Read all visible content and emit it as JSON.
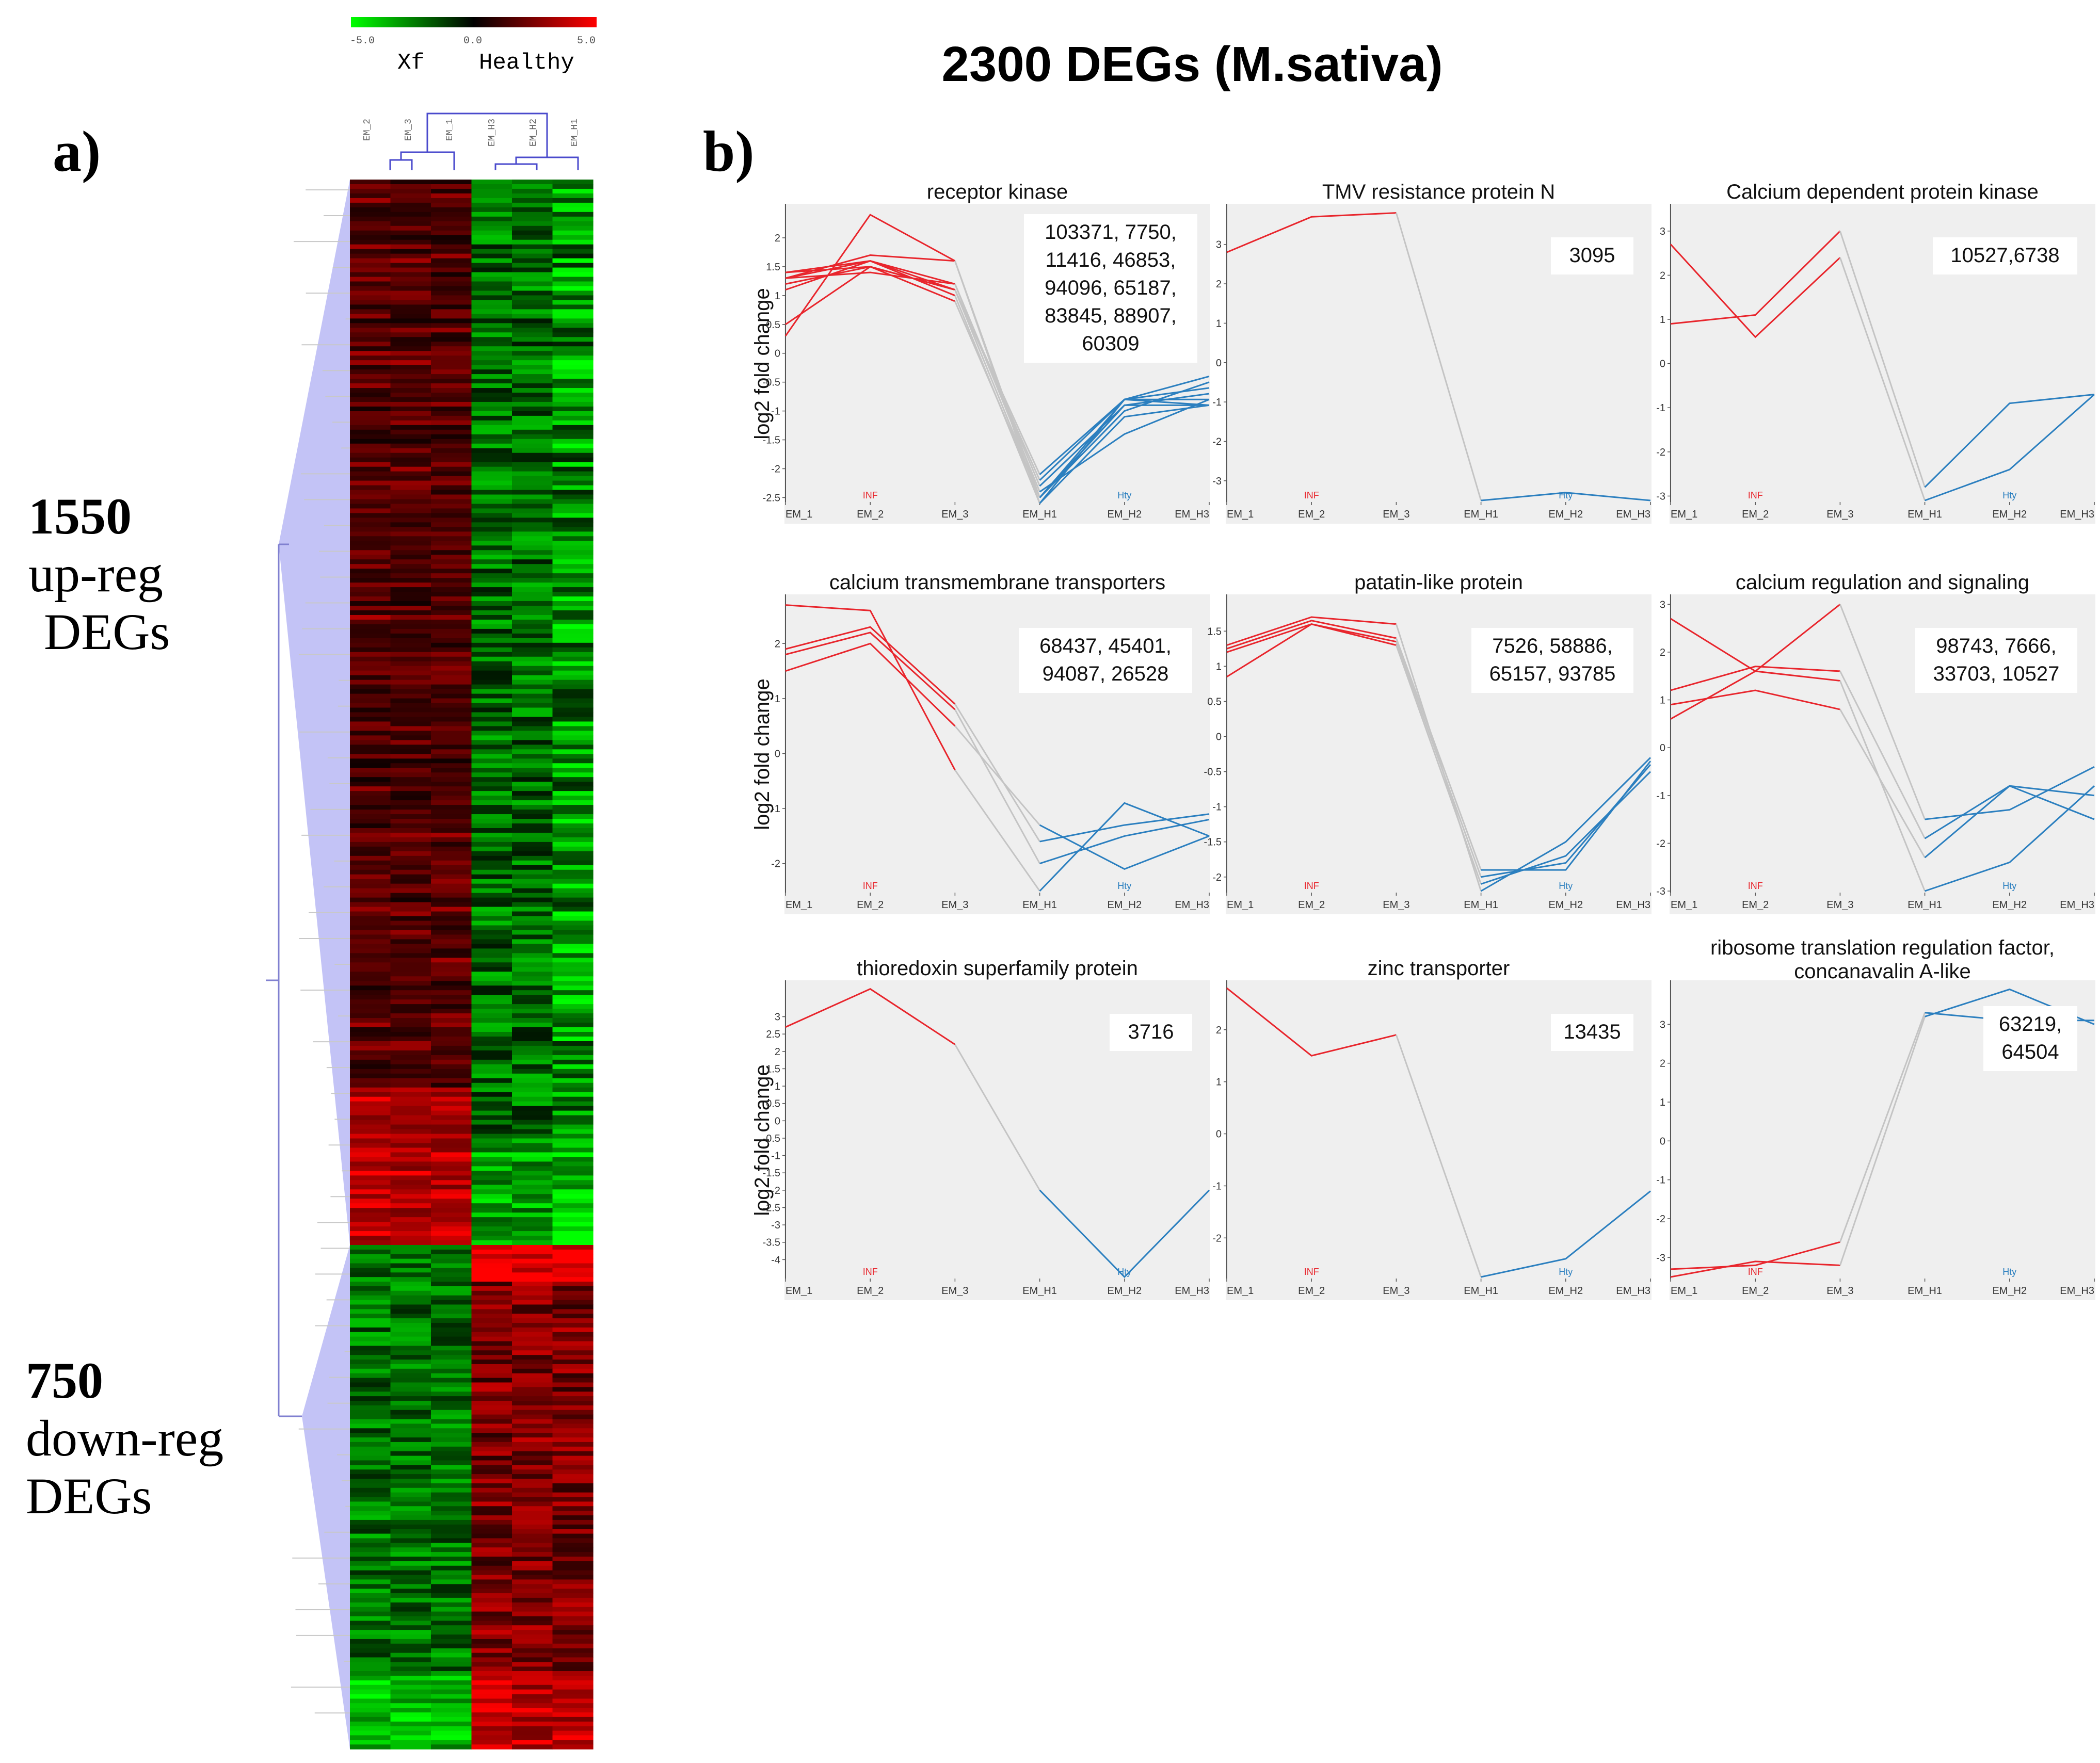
{
  "figure": {
    "title": "2300 DEGs (M.sativa)",
    "panel_a_label": "a)",
    "panel_b_label": "b)",
    "up_count": "1550",
    "up_label_1": "up-reg",
    "up_label_2": "DEGs",
    "down_count": "750",
    "down_label_1": "down-reg",
    "down_label_2": "DEGs",
    "colors": {
      "infected": "#e8252c",
      "healthy": "#2b7fbf",
      "transition": "#c4c4c4",
      "panel_bg": "#efefef",
      "dendro_fill": "#b8b8f5"
    }
  },
  "heatmap": {
    "scale_min": "-5.0",
    "scale_mid": "0.0",
    "scale_max": "5.0",
    "group_left": "Xf",
    "group_right": "Healthy",
    "columns": [
      "EM_2",
      "EM_3",
      "EM_1",
      "EM_H3",
      "EM_H2",
      "EM_H1"
    ],
    "up_rows": 1550,
    "down_rows": 750
  },
  "chart_data": [
    {
      "type": "line",
      "title": "receptor kinase",
      "ylabel": "log2 fold change",
      "x": [
        "EM_1",
        "EM_2",
        "EM_3",
        "EM_H1",
        "EM_H2",
        "EM_H3"
      ],
      "group_labels": [
        "INF",
        "Hty"
      ],
      "yticks": [
        "2",
        "1.5",
        "1",
        "0.5",
        "0",
        "-0.5",
        "-1",
        "-1.5",
        "-2",
        "-2.5"
      ],
      "ylim": [
        -2.55,
        2.5
      ],
      "ids": [
        "103371, 7750,",
        "11416, 46853,",
        "94096, 65187,",
        "83845, 88907,",
        "60309"
      ],
      "series": [
        {
          "values": [
            0.3,
            2.4,
            1.6,
            -2.6,
            -0.8,
            -0.4
          ]
        },
        {
          "values": [
            1.3,
            1.7,
            1.6,
            -2.5,
            -0.8,
            -0.8
          ]
        },
        {
          "values": [
            1.4,
            1.6,
            1.2,
            -2.3,
            -0.9,
            -0.7
          ]
        },
        {
          "values": [
            1.2,
            1.5,
            1.1,
            -2.1,
            -0.8,
            -0.6
          ]
        },
        {
          "values": [
            1.1,
            1.6,
            1.0,
            -2.6,
            -1.1,
            -0.9
          ]
        },
        {
          "values": [
            1.3,
            1.4,
            1.2,
            -2.4,
            -1.4,
            -0.8
          ]
        },
        {
          "values": [
            0.5,
            1.5,
            1.1,
            -2.5,
            -0.9,
            -0.9
          ]
        },
        {
          "values": [
            1.4,
            1.5,
            0.9,
            -2.5,
            -1.0,
            -0.5
          ]
        },
        {
          "values": [
            1.3,
            1.6,
            1.1,
            -2.2,
            -0.8,
            -0.9
          ]
        }
      ]
    },
    {
      "type": "line",
      "title": "TMV resistance protein N",
      "ylabel": "",
      "x": [
        "EM_1",
        "EM_2",
        "EM_3",
        "EM_H1",
        "EM_H2",
        "EM_H3"
      ],
      "group_labels": [
        "INF",
        "Hty"
      ],
      "yticks": [
        "3",
        "2",
        "1",
        "0",
        "-1",
        "-2",
        "-3"
      ],
      "ylim": [
        -3.5,
        3.9
      ],
      "ids": [
        "3095"
      ],
      "series": [
        {
          "values": [
            2.8,
            3.7,
            3.8,
            -3.5,
            -3.3,
            -3.5
          ]
        }
      ]
    },
    {
      "type": "line",
      "title": "Calcium dependent protein kinase",
      "ylabel": "",
      "x": [
        "EM_1",
        "EM_2",
        "EM_3",
        "EM_H1",
        "EM_H2",
        "EM_H3"
      ],
      "group_labels": [
        "INF",
        "Hty"
      ],
      "yticks": [
        "3",
        "2",
        "1",
        "0",
        "-1",
        "-2",
        "-3"
      ],
      "ylim": [
        -3.1,
        3.5
      ],
      "ids": [
        "10527,6738"
      ],
      "series": [
        {
          "values": [
            0.9,
            1.1,
            3.0,
            -2.8,
            -0.9,
            -0.7
          ]
        },
        {
          "values": [
            2.7,
            0.6,
            2.4,
            -3.1,
            -2.4,
            -0.7
          ]
        }
      ]
    },
    {
      "type": "line",
      "title": "calcium transmembrane transporters",
      "ylabel": "log2 fold change",
      "x": [
        "EM_1",
        "EM_2",
        "EM_3",
        "EM_H1",
        "EM_H2",
        "EM_H3"
      ],
      "group_labels": [
        "INF",
        "Hty"
      ],
      "yticks": [
        "2",
        "1",
        "0",
        "-1",
        "-2"
      ],
      "ylim": [
        -2.5,
        2.8
      ],
      "ids": [
        "68437, 45401,",
        "94087, 26528"
      ],
      "series": [
        {
          "values": [
            2.7,
            2.6,
            -0.3,
            -2.5,
            -0.9,
            -1.5
          ]
        },
        {
          "values": [
            1.9,
            2.3,
            0.9,
            -1.6,
            -1.3,
            -1.1
          ]
        },
        {
          "values": [
            1.8,
            2.2,
            0.8,
            -2.0,
            -1.5,
            -1.2
          ]
        },
        {
          "values": [
            1.5,
            2.0,
            0.5,
            -1.3,
            -2.1,
            -1.5
          ]
        }
      ]
    },
    {
      "type": "line",
      "title": "patatin-like protein",
      "ylabel": "",
      "x": [
        "EM_1",
        "EM_2",
        "EM_3",
        "EM_H1",
        "EM_H2",
        "EM_H3"
      ],
      "group_labels": [
        "INF",
        "Hty"
      ],
      "yticks": [
        "1.5",
        "1",
        "0.5",
        "0",
        "-0.5",
        "-1",
        "-1.5",
        "-2"
      ],
      "ylim": [
        -2.2,
        1.95
      ],
      "ids": [
        "7526, 58886,",
        "65157, 93785"
      ],
      "series": [
        {
          "values": [
            1.3,
            1.7,
            1.6,
            -2.2,
            -1.5,
            -0.3
          ]
        },
        {
          "values": [
            1.25,
            1.65,
            1.4,
            -1.9,
            -1.9,
            -0.35
          ]
        },
        {
          "values": [
            1.2,
            1.6,
            1.35,
            -2.0,
            -1.8,
            -0.4
          ]
        },
        {
          "values": [
            0.85,
            1.6,
            1.3,
            -2.1,
            -1.7,
            -0.5
          ]
        }
      ]
    },
    {
      "type": "line",
      "title": "calcium regulation and signaling",
      "ylabel": "",
      "x": [
        "EM_1",
        "EM_2",
        "EM_3",
        "EM_H1",
        "EM_H2",
        "EM_H3"
      ],
      "group_labels": [
        "INF",
        "Hty"
      ],
      "yticks": [
        "3",
        "2",
        "1",
        "0",
        "-1",
        "-2",
        "-3"
      ],
      "ylim": [
        -3.0,
        3.1
      ],
      "ids": [
        "98743, 7666,",
        "33703, 10527"
      ],
      "series": [
        {
          "values": [
            2.7,
            1.6,
            3.0,
            -1.5,
            -1.3,
            -0.4
          ]
        },
        {
          "values": [
            1.2,
            1.7,
            1.6,
            -1.9,
            -0.8,
            -1.5
          ]
        },
        {
          "values": [
            0.9,
            1.2,
            0.8,
            -2.3,
            -0.8,
            -1.0
          ]
        },
        {
          "values": [
            0.6,
            1.6,
            1.4,
            -3.0,
            -2.4,
            -0.8
          ]
        }
      ]
    },
    {
      "type": "line",
      "title": "thioredoxin superfamily protein",
      "ylabel": "log2 fold change",
      "x": [
        "EM_1",
        "EM_2",
        "EM_3",
        "EM_H1",
        "EM_H2",
        "EM_H3"
      ],
      "group_labels": [
        "INF",
        "Hty"
      ],
      "yticks": [
        "3",
        "2.5",
        "2",
        "1.5",
        "1",
        "0.5",
        "0",
        "-0.5",
        "-1",
        "-1.5",
        "-2",
        "-2.5",
        "-3",
        "-3.5",
        "-4"
      ],
      "ylim": [
        -4.5,
        3.9
      ],
      "ids": [
        "3716"
      ],
      "series": [
        {
          "values": [
            2.7,
            3.8,
            2.2,
            -2.0,
            -4.5,
            -2.0
          ]
        }
      ]
    },
    {
      "type": "line",
      "title": "zinc transporter",
      "ylabel": "",
      "x": [
        "EM_1",
        "EM_2",
        "EM_3",
        "EM_H1",
        "EM_H2",
        "EM_H3"
      ],
      "group_labels": [
        "INF",
        "Hty"
      ],
      "yticks": [
        "2",
        "1",
        "0",
        "-1",
        "-2"
      ],
      "ylim": [
        -2.75,
        2.85
      ],
      "ids": [
        "13435"
      ],
      "series": [
        {
          "values": [
            2.8,
            1.5,
            1.9,
            -2.75,
            -2.4,
            -1.1
          ]
        }
      ]
    },
    {
      "type": "line",
      "title": "ribosome translation regulation factor, concanavalin A-like",
      "title_line_2": "concanavalin A-like",
      "ylabel": "",
      "x": [
        "EM_1",
        "EM_2",
        "EM_3",
        "EM_H1",
        "EM_H2",
        "EM_H3"
      ],
      "group_labels": [
        "INF",
        "Hty"
      ],
      "yticks": [
        "3",
        "2",
        "1",
        "0",
        "-1",
        "-2",
        "-3"
      ],
      "ylim": [
        -3.5,
        4.0
      ],
      "ids": [
        "63219,",
        "64504"
      ],
      "series": [
        {
          "values": [
            -3.3,
            -3.2,
            -2.6,
            3.3,
            3.1,
            3.1
          ]
        },
        {
          "values": [
            -3.5,
            -3.1,
            -3.2,
            3.2,
            3.9,
            3.0
          ]
        }
      ]
    }
  ]
}
